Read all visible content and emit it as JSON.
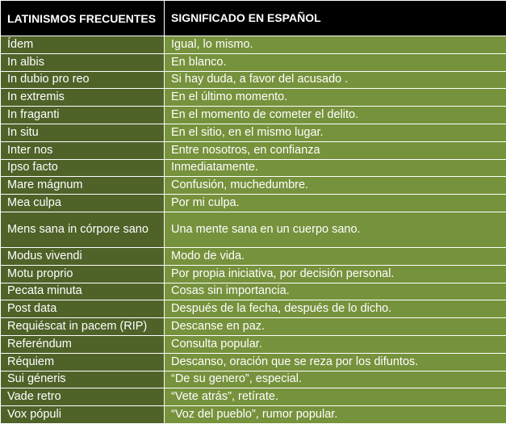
{
  "colors": {
    "header_bg": "#000000",
    "dark_row": "#4f6228",
    "light_row": "#76923c",
    "text": "#ffffff"
  },
  "header": {
    "col1": "LATINISMOS FRECUENTES",
    "col2": "SIGNIFICADO EN ESPAÑOL"
  },
  "rows": [
    {
      "term": "Ídem",
      "meaning": "Igual, lo mismo."
    },
    {
      "term": "In albis",
      "meaning": "En blanco."
    },
    {
      "term": "In dubio pro reo",
      "meaning": "Si hay duda, a favor del acusado ."
    },
    {
      "term": "In extremis",
      "meaning": "En el último momento."
    },
    {
      "term": "In fraganti",
      "meaning": "En el momento de cometer el delito."
    },
    {
      "term": "In situ",
      "meaning": "En el sitio, en el mismo lugar."
    },
    {
      "term": "Inter nos",
      "meaning": "Entre nosotros, en confianza"
    },
    {
      "term": "Ipso facto",
      "meaning": "Inmediatamente."
    },
    {
      "term": "Mare mágnum",
      "meaning": "Confusión, muchedumbre."
    },
    {
      "term": "Mea culpa",
      "meaning": "Por mi culpa."
    },
    {
      "term": "Mens sana in córpore sano",
      "meaning": "Una mente sana en un cuerpo sano."
    },
    {
      "term": "Modus vivendi",
      "meaning": "Modo de vida."
    },
    {
      "term": "Motu proprio",
      "meaning": "Por  propia iniciativa, por decisión personal."
    },
    {
      "term": "Pecata minuta",
      "meaning": "Cosas sin importancia."
    },
    {
      "term": "Post data",
      "meaning": "Después de la fecha, después de lo dicho."
    },
    {
      "term": "Requiéscat in pacem (RIP)",
      "meaning": "Descanse en paz."
    },
    {
      "term": "Referéndum",
      "meaning": "Consulta popular."
    },
    {
      "term": "Réquiem",
      "meaning": "Descanso, oración que se reza por los difuntos."
    },
    {
      "term": "Sui géneris",
      "meaning": "“De su genero”, especial."
    },
    {
      "term": "Vade retro",
      "meaning": "“Vete atrás”, retírate."
    },
    {
      "term": "Vox pópuli",
      "meaning": "“Voz del pueblo”, rumor popular."
    }
  ]
}
